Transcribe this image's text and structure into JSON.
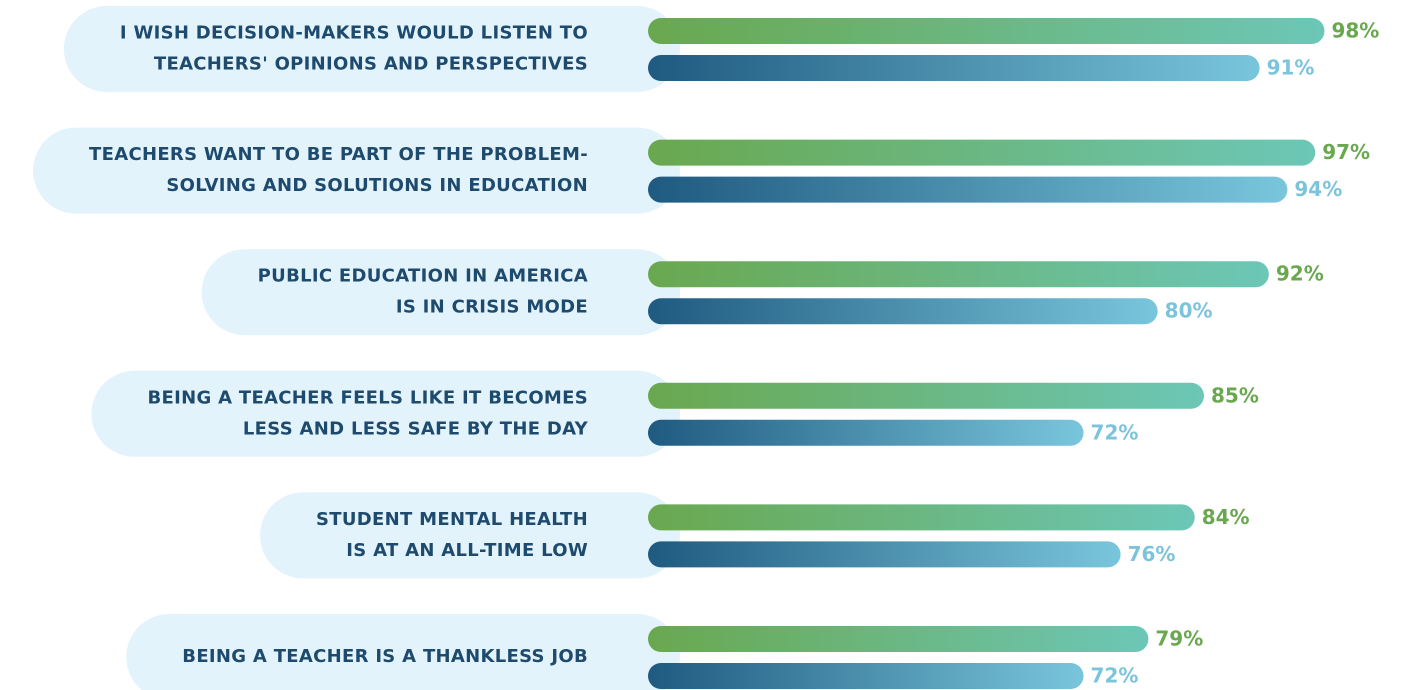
{
  "chart_data": {
    "type": "bar",
    "orientation": "horizontal",
    "categories": [
      [
        "I WISH DECISION-MAKERS WOULD LISTEN TO",
        "TEACHERS' OPINIONS AND PERSPECTIVES"
      ],
      [
        "TEACHERS WANT TO BE PART OF THE PROBLEM-",
        "SOLVING AND SOLUTIONS IN EDUCATION"
      ],
      [
        "PUBLIC EDUCATION IN AMERICA",
        "IS IN CRISIS MODE"
      ],
      [
        "BEING A TEACHER FEELS LIKE IT BECOMES",
        "LESS AND LESS SAFE BY THE DAY"
      ],
      [
        "STUDENT MENTAL HEALTH",
        "IS AT AN ALL-TIME LOW"
      ],
      [
        "BEING A TEACHER IS A THANKLESS JOB"
      ]
    ],
    "series": [
      {
        "color": "#6aa84f",
        "gradient": [
          "#6aa84f",
          "#6cc7b7"
        ],
        "label_color": "#6aa84f",
        "values": [
          98,
          97,
          92,
          85,
          84,
          79
        ],
        "value_labels": [
          "98%",
          "97%",
          "92%",
          "85%",
          "84%",
          "79%"
        ]
      },
      {
        "color": "#1f5a80",
        "gradient": [
          "#1f5a80",
          "#79c6dc"
        ],
        "label_color": "#7cc4dc",
        "values": [
          91,
          94,
          80,
          72,
          76,
          72
        ],
        "value_labels": [
          "91%",
          "94%",
          "80%",
          "72%",
          "76%",
          "72%"
        ]
      }
    ],
    "xlim": [
      25,
      100
    ]
  }
}
